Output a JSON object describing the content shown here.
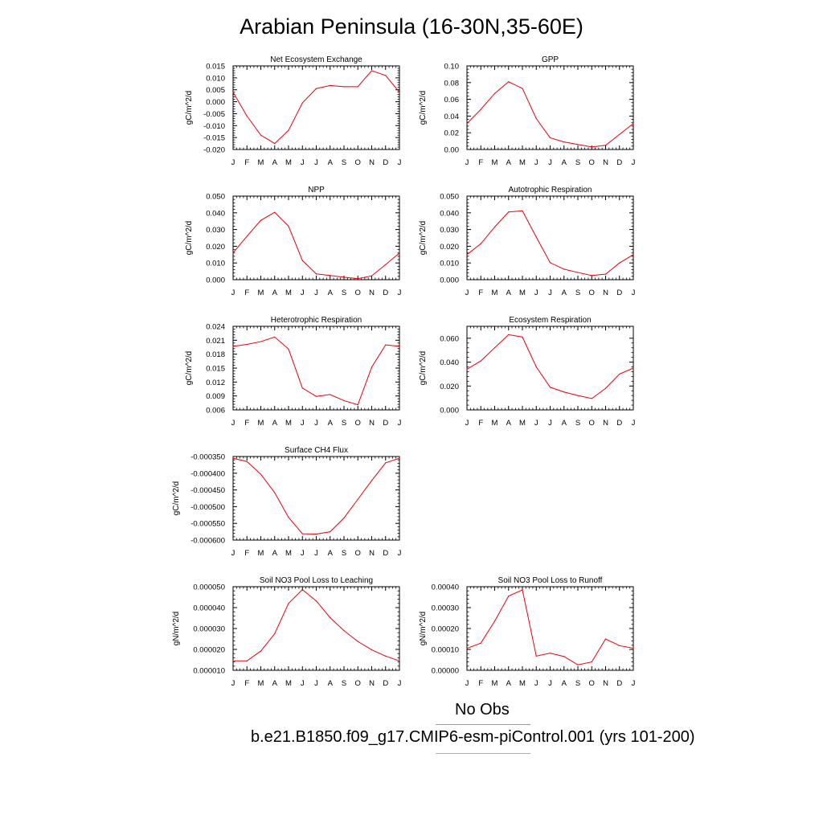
{
  "figure": {
    "title": "Arabian Peninsula (16-30N,35-60E)",
    "legend": {
      "obs_label": "No Obs",
      "obs_color": "#8c8cff",
      "case_label": "b.e21.B1850.f09_g17.CMIP6-esm-piControl.001 (yrs 101-200)",
      "case_color": "#ff8c8c"
    },
    "line_color": "#e8000b"
  },
  "chart_data": [
    {
      "type": "line",
      "title": "Net Ecosystem Exchange",
      "ylabel": "gC/m^2/d",
      "categories": [
        "J",
        "F",
        "M",
        "A",
        "M",
        "J",
        "J",
        "A",
        "S",
        "O",
        "N",
        "D",
        "J"
      ],
      "yticks": [
        "0.015",
        "0.010",
        "0.005",
        "0.000",
        "-0.005",
        "-0.010",
        "-0.015",
        "-0.020"
      ],
      "ylim": [
        -0.02,
        0.015
      ],
      "values": [
        0.004,
        -0.006,
        -0.014,
        -0.0175,
        -0.012,
        -0.0005,
        0.0055,
        0.0068,
        0.0063,
        0.0063,
        0.013,
        0.011,
        0.004
      ]
    },
    {
      "type": "line",
      "title": "GPP",
      "ylabel": "gC/m^2/d",
      "categories": [
        "J",
        "F",
        "M",
        "A",
        "M",
        "J",
        "J",
        "A",
        "S",
        "O",
        "N",
        "D",
        "J"
      ],
      "yticks": [
        "0.10",
        "0.08",
        "0.06",
        "0.04",
        "0.02",
        "0.00"
      ],
      "ylim": [
        0,
        0.1
      ],
      "values": [
        0.031,
        0.048,
        0.067,
        0.081,
        0.073,
        0.037,
        0.014,
        0.009,
        0.006,
        0.003,
        0.005,
        0.018,
        0.031
      ]
    },
    {
      "type": "line",
      "title": "NPP",
      "ylabel": "gC/m^2/d",
      "categories": [
        "J",
        "F",
        "M",
        "A",
        "M",
        "J",
        "J",
        "A",
        "S",
        "O",
        "N",
        "D",
        "J"
      ],
      "yticks": [
        "0.050",
        "0.040",
        "0.030",
        "0.020",
        "0.010",
        "0.000"
      ],
      "ylim": [
        0,
        0.05
      ],
      "values": [
        0.016,
        0.026,
        0.0355,
        0.0403,
        0.032,
        0.0115,
        0.0035,
        0.0025,
        0.0015,
        0.0006,
        0.0023,
        0.009,
        0.016
      ]
    },
    {
      "type": "line",
      "title": "Autotrophic Respiration",
      "ylabel": "gC/m^2/d",
      "categories": [
        "J",
        "F",
        "M",
        "A",
        "M",
        "J",
        "J",
        "A",
        "S",
        "O",
        "N",
        "D",
        "J"
      ],
      "yticks": [
        "0.050",
        "0.040",
        "0.030",
        "0.020",
        "0.010",
        "0.000"
      ],
      "ylim": [
        0,
        0.05
      ],
      "values": [
        0.015,
        0.0215,
        0.0315,
        0.0405,
        0.0412,
        0.0255,
        0.0102,
        0.0063,
        0.0043,
        0.0025,
        0.0033,
        0.01,
        0.015
      ]
    },
    {
      "type": "line",
      "title": "Heterotrophic Respiration",
      "ylabel": "gC/m^2/d",
      "categories": [
        "J",
        "F",
        "M",
        "A",
        "M",
        "J",
        "J",
        "A",
        "S",
        "O",
        "N",
        "D",
        "J"
      ],
      "yticks": [
        "0.024",
        "0.021",
        "0.018",
        "0.015",
        "0.012",
        "0.009",
        "0.006"
      ],
      "ylim": [
        0.006,
        0.024
      ],
      "values": [
        0.0197,
        0.0201,
        0.0207,
        0.0217,
        0.0191,
        0.0107,
        0.0089,
        0.0093,
        0.008,
        0.0071,
        0.0152,
        0.02,
        0.0197
      ]
    },
    {
      "type": "line",
      "title": "Ecosystem Respiration",
      "ylabel": "gC/m^2/d",
      "categories": [
        "J",
        "F",
        "M",
        "A",
        "M",
        "J",
        "J",
        "A",
        "S",
        "O",
        "N",
        "D",
        "J"
      ],
      "yticks": [
        "0.060",
        "0.040",
        "0.020",
        "0.000"
      ],
      "ylim": [
        0,
        0.07
      ],
      "values": [
        0.034,
        0.041,
        0.052,
        0.063,
        0.061,
        0.036,
        0.019,
        0.015,
        0.012,
        0.0095,
        0.018,
        0.03,
        0.035
      ]
    },
    {
      "type": "line",
      "title": "Surface CH4 Flux",
      "ylabel": "gC/m^2/d",
      "categories": [
        "J",
        "F",
        "M",
        "A",
        "M",
        "J",
        "J",
        "A",
        "S",
        "O",
        "N",
        "D",
        "J"
      ],
      "yticks": [
        "-0.000350",
        "-0.000400",
        "-0.000450",
        "-0.000500",
        "-0.000550",
        "-0.000600"
      ],
      "ylim": [
        -0.0006,
        -0.00035
      ],
      "values": [
        -0.000355,
        -0.000365,
        -0.000403,
        -0.000458,
        -0.000532,
        -0.000581,
        -0.000582,
        -0.000575,
        -0.000534,
        -0.000478,
        -0.000422,
        -0.000369,
        -0.000355
      ]
    },
    {
      "type": "line",
      "title": "Soil NO3 Pool Loss to Leaching",
      "ylabel": "gN/m^2/d",
      "categories": [
        "J",
        "F",
        "M",
        "A",
        "M",
        "J",
        "J",
        "A",
        "S",
        "O",
        "N",
        "D",
        "J"
      ],
      "yticks": [
        "0.000050",
        "0.000040",
        "0.000030",
        "0.000020",
        "0.000010"
      ],
      "ylim": [
        1e-05,
        5e-05
      ],
      "values": [
        1.45e-05,
        1.45e-05,
        1.92e-05,
        2.75e-05,
        4.2e-05,
        4.86e-05,
        4.32e-05,
        3.52e-05,
        2.9e-05,
        2.38e-05,
        1.98e-05,
        1.68e-05,
        1.45e-05
      ]
    },
    {
      "type": "line",
      "title": "Soil NO3 Pool Loss to Runoff",
      "ylabel": "gN/m^2/d",
      "categories": [
        "J",
        "F",
        "M",
        "A",
        "M",
        "J",
        "J",
        "A",
        "S",
        "O",
        "N",
        "D",
        "J"
      ],
      "yticks": [
        "0.00040",
        "0.00030",
        "0.00020",
        "0.00010",
        "0.00000"
      ],
      "ylim": [
        0,
        0.0004
      ],
      "values": [
        0.000105,
        0.00013,
        0.000235,
        0.000355,
        0.000385,
        6.8e-05,
        8.2e-05,
        6.6e-05,
        2.6e-05,
        4e-05,
        0.00015,
        0.000118,
        0.000106
      ]
    }
  ]
}
